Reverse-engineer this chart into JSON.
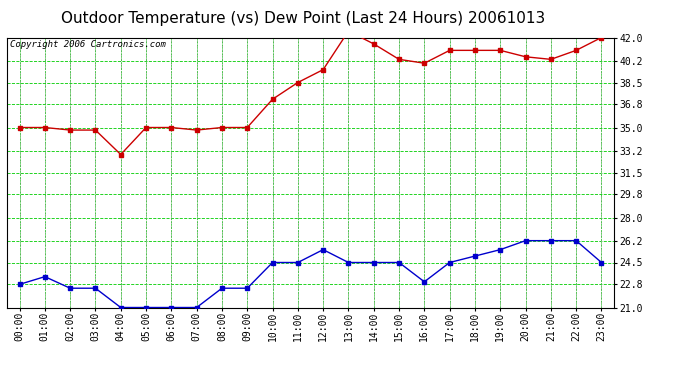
{
  "title": "Outdoor Temperature (vs) Dew Point (Last 24 Hours) 20061013",
  "copyright": "Copyright 2006 Cartronics.com",
  "x_labels": [
    "00:00",
    "01:00",
    "02:00",
    "03:00",
    "04:00",
    "05:00",
    "06:00",
    "07:00",
    "08:00",
    "09:00",
    "10:00",
    "11:00",
    "12:00",
    "13:00",
    "14:00",
    "15:00",
    "16:00",
    "17:00",
    "18:00",
    "19:00",
    "20:00",
    "21:00",
    "22:00",
    "23:00"
  ],
  "temp_values": [
    35.0,
    35.0,
    34.8,
    34.8,
    32.9,
    35.0,
    35.0,
    34.8,
    35.0,
    35.0,
    37.2,
    38.5,
    39.5,
    42.5,
    41.5,
    40.3,
    40.0,
    41.0,
    41.0,
    41.0,
    40.5,
    40.3,
    41.0,
    42.0
  ],
  "dew_values": [
    22.8,
    23.4,
    22.5,
    22.5,
    21.0,
    21.0,
    21.0,
    21.0,
    22.5,
    22.5,
    24.5,
    24.5,
    25.5,
    24.5,
    24.5,
    24.5,
    23.0,
    24.5,
    25.0,
    25.5,
    26.2,
    26.2,
    26.2,
    24.5
  ],
  "temp_color": "#cc0000",
  "dew_color": "#0000cc",
  "bg_color": "#ffffff",
  "plot_bg_color": "#ffffff",
  "grid_color_gray": "#aaaaaa",
  "grid_color_green": "#00cc00",
  "y_min": 21.0,
  "y_max": 42.0,
  "y_ticks": [
    21.0,
    22.8,
    24.5,
    26.2,
    28.0,
    29.8,
    31.5,
    33.2,
    35.0,
    36.8,
    38.5,
    40.2,
    42.0
  ],
  "title_fontsize": 11,
  "tick_fontsize": 7,
  "copyright_fontsize": 6.5
}
